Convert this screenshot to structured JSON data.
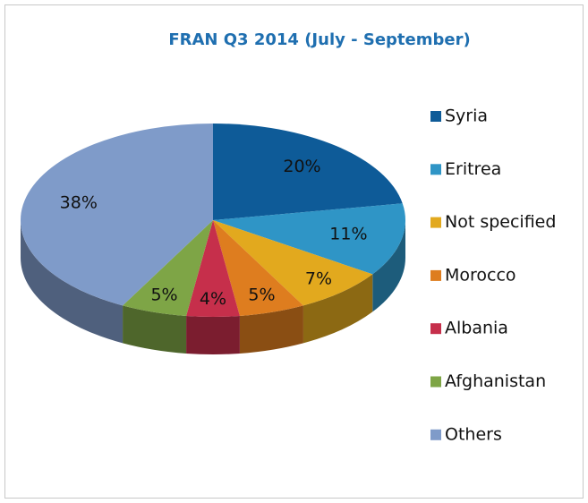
{
  "chart_data": {
    "type": "pie3d",
    "title": "FRAN Q3 2014 (July - September)",
    "categories": [
      "Syria",
      "Eritrea",
      "Not specified",
      "Morocco",
      "Albania",
      "Afghanistan",
      "Others"
    ],
    "values": [
      20,
      11,
      7,
      5,
      4,
      5,
      38
    ],
    "value_labels": [
      "20%",
      "11%",
      "7%",
      "5%",
      "4%",
      "5%",
      "38%"
    ],
    "colors": [
      "#0e5b98",
      "#2f95c6",
      "#e2a91e",
      "#de7d1f",
      "#c62f4b",
      "#7ea546",
      "#7f9bc9"
    ],
    "legend": "right"
  }
}
